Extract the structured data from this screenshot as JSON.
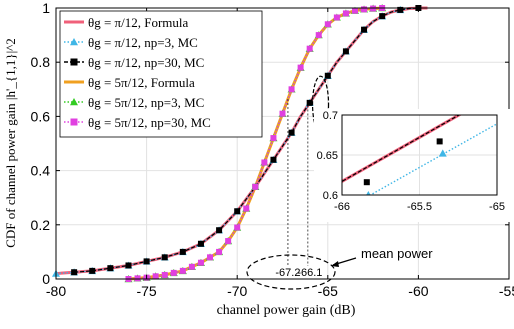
{
  "chart_data": {
    "type": "line",
    "title": "",
    "xlabel": "channel power gain (dB)",
    "ylabel": "CDF of channel power gain |h'_{1,1}|^2",
    "xlim": [
      -80,
      -55
    ],
    "ylim": [
      0,
      1
    ],
    "xticks": [
      -80,
      -75,
      -70,
      -65,
      -60,
      -55
    ],
    "yticks": [
      0,
      0.2,
      0.4,
      0.6,
      0.8,
      1
    ],
    "grid": true,
    "legend_position": "top-left",
    "colors": {
      "pi12_formula": "#f0607a",
      "pi12_np3": "#3fb6e6",
      "pi12_np30": "#000000",
      "fivepi12_formula": "#f0a020",
      "fivepi12_np3": "#33cc22",
      "fivepi12_np30": "#e040e0"
    },
    "legend": [
      "θg = π/12, Formula",
      "θg = π/12, np=3, MC",
      "θg = π/12, np=30, MC",
      "θg = 5π/12, Formula",
      "θg = 5π/12, np=3, MC",
      "θg = 5π/12, np=30, MC"
    ],
    "series_pi12": {
      "x": [
        -80,
        -78,
        -76,
        -74,
        -73,
        -72,
        -71,
        -70,
        -69,
        -68.5,
        -68,
        -67.5,
        -67,
        -66.5,
        -66,
        -65.5,
        -65,
        -64.5,
        -64,
        -63.5,
        -63,
        -62.5,
        -62,
        -61.5,
        -61,
        -60.5,
        -60
      ],
      "y": [
        0.02,
        0.03,
        0.05,
        0.08,
        0.1,
        0.13,
        0.18,
        0.25,
        0.34,
        0.39,
        0.44,
        0.49,
        0.54,
        0.6,
        0.65,
        0.7,
        0.75,
        0.8,
        0.84,
        0.88,
        0.92,
        0.95,
        0.97,
        0.985,
        0.993,
        0.998,
        1.0
      ]
    },
    "series_5pi12": {
      "x": [
        -76,
        -75,
        -74,
        -73,
        -72,
        -71,
        -70.5,
        -70,
        -69.5,
        -69,
        -68.5,
        -68,
        -67.5,
        -67,
        -66.5,
        -66,
        -65.5,
        -65,
        -64.5,
        -64,
        -63.5,
        -63,
        -62.5,
        -62
      ],
      "y": [
        0.0,
        0.005,
        0.015,
        0.03,
        0.06,
        0.1,
        0.14,
        0.19,
        0.26,
        0.34,
        0.43,
        0.52,
        0.61,
        0.7,
        0.78,
        0.85,
        0.9,
        0.94,
        0.965,
        0.98,
        0.99,
        0.995,
        0.998,
        1.0
      ]
    },
    "inset": {
      "xlim": [
        -66,
        -65
      ],
      "ylim": [
        0.6,
        0.7
      ],
      "xticks": [
        -66,
        -65.5,
        -65
      ],
      "yticks": [
        0.6,
        0.65,
        0.7
      ],
      "pi12_formula": [
        [
          -66.2,
          0.595
        ],
        [
          -65.2,
          0.705
        ]
      ],
      "np3": [
        [
          -66.0,
          0.58
        ],
        [
          -65.0,
          0.689
        ]
      ],
      "np30": [
        [
          -66.2,
          0.595
        ],
        [
          -65.2,
          0.705
        ]
      ],
      "np3_markers": [
        [
          -65.83,
          0.6
        ],
        [
          -65.35,
          0.652
        ]
      ],
      "np30_markers": [
        [
          -65.84,
          0.616
        ],
        [
          -65.37,
          0.667
        ]
      ]
    },
    "annotations": {
      "mean_power_label": "mean power",
      "mean_5pi12": "-67.2",
      "mean_pi12": "-66.1"
    }
  }
}
